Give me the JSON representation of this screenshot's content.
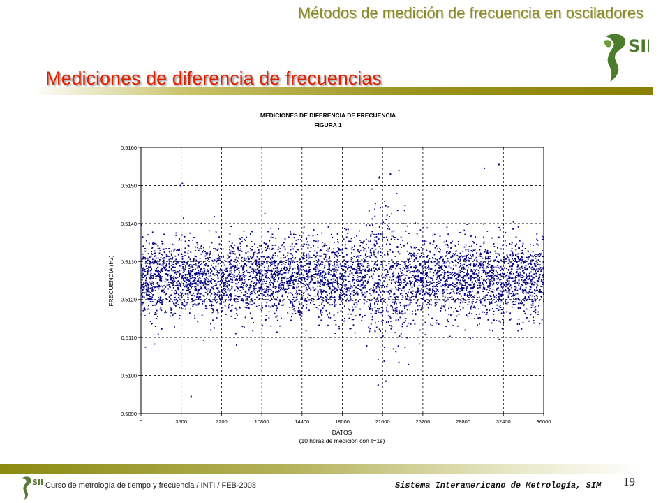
{
  "header": {
    "title": "Métodos de medición de frecuencia en osciladores",
    "logo_text": "SIM"
  },
  "section": {
    "title": "Mediciones de diferencia de frecuencias"
  },
  "chart_data": {
    "type": "scatter",
    "title": "MEDICIONES DE DIFERENCIA DE FRECUENCIA",
    "subtitle": "FIGURA 1",
    "xlabel": "DATOS",
    "xlabel2": "(10 horas de medición con τ=1s)",
    "ylabel": "FRECUENCIA (Hz)",
    "xlim": [
      0,
      36000
    ],
    "ylim": [
      0.509,
      0.516
    ],
    "x_ticks": [
      0,
      3600,
      7200,
      10800,
      14400,
      18000,
      21600,
      25200,
      28800,
      32400,
      36000
    ],
    "y_ticks": [
      "0.5090",
      "0.5100",
      "0.5110",
      "0.5120",
      "0.5130",
      "0.5140",
      "0.5150",
      "0.5160"
    ],
    "grid": "dashed",
    "marker_color": "#000080",
    "series_mean": 0.51255,
    "series_core_halfwidth": 0.00045,
    "series_spread_max": 0.0029,
    "outliers": [
      {
        "x": 4480,
        "y": 0.50945
      },
      {
        "x": 21200,
        "y": 0.50975
      },
      {
        "x": 21900,
        "y": 0.50985
      },
      {
        "x": 22300,
        "y": 0.5153
      },
      {
        "x": 21300,
        "y": 0.5152
      },
      {
        "x": 30700,
        "y": 0.51545
      },
      {
        "x": 32000,
        "y": 0.51555
      },
      {
        "x": 3700,
        "y": 0.51505
      },
      {
        "x": 3550,
        "y": 0.515
      }
    ]
  },
  "footer": {
    "course": "Curso de metrología de tiempo y frecuencia / INTI / FEB-2008",
    "organization": "Sistema Interamericano de Metrología, SIM",
    "page": "19",
    "logo_text": "SIM"
  }
}
